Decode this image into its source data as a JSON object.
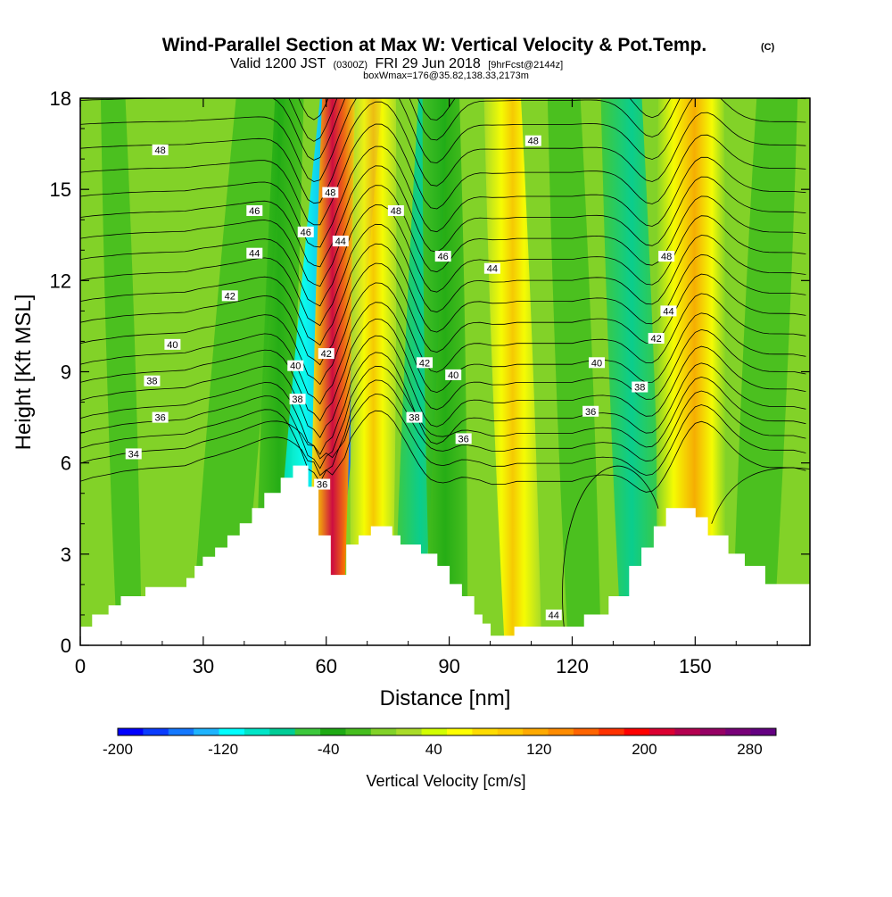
{
  "header": {
    "title": "Wind-Parallel Section at Max W: Vertical Velocity & Pot.Temp.",
    "title_mark": "(C)",
    "valid_prefix": "Valid 1200 JST",
    "valid_zulu": "(0300Z)",
    "valid_date": "FRI 29 Jun 2018",
    "forecast": "[9hrFcst@2144z]",
    "box_info": "boxWmax=176@35.82,138.33,2173m"
  },
  "colorbar": {
    "title": "Vertical Velocity [cm/s]",
    "tick_labels": [
      "-200",
      "-120",
      "-40",
      "40",
      "120",
      "200",
      "280"
    ],
    "colors": [
      "#0000ff",
      "#0a3cff",
      "#1478ff",
      "#1eb4ff",
      "#00ffff",
      "#00e6c8",
      "#00cd96",
      "#3cc83c",
      "#1eaa14",
      "#46be1e",
      "#82d228",
      "#aadc28",
      "#d2ff00",
      "#ffff00",
      "#ffdc00",
      "#ffc800",
      "#ffaa00",
      "#ff8c00",
      "#ff6400",
      "#ff3200",
      "#ff0000",
      "#dc0032",
      "#b40050",
      "#960064",
      "#780078",
      "#640082"
    ]
  },
  "chart_data": {
    "type": "heatmap",
    "title": "Wind-Parallel Section at Max W: Vertical Velocity & Pot.Temp.",
    "xlabel": "Distance [nm]",
    "ylabel": "Height [Kft MSL]",
    "xlim": [
      0,
      178
    ],
    "ylim": [
      0,
      18
    ],
    "x_ticks": [
      0,
      30,
      60,
      90,
      120,
      150
    ],
    "y_ticks": [
      0,
      3,
      6,
      9,
      12,
      15,
      18
    ],
    "shaded_variable": "Vertical Velocity [cm/s]",
    "contour_variable": "Potential temperature",
    "color_range": [
      -200,
      300
    ],
    "color_step": 20,
    "vertical_velocity_bands": [
      {
        "x_bottom": 56,
        "x_top": 64,
        "max_value": 220
      },
      {
        "x_bottom": 54,
        "x_top": 68,
        "min_value": -180
      },
      {
        "x_bottom": 67,
        "x_top": 77,
        "max_value": 110
      },
      {
        "x_bottom": 85,
        "x_top": 85,
        "min_value": -50
      },
      {
        "x_bottom": 103,
        "x_top": 110,
        "max_value": 50
      },
      {
        "x_bottom": 133,
        "x_top": 148,
        "min_value": -60
      },
      {
        "x_bottom": 143,
        "x_top": 157,
        "max_value": 130
      }
    ],
    "terrain": [
      [
        0,
        0.6
      ],
      [
        3,
        1.0
      ],
      [
        7,
        1.3
      ],
      [
        10,
        1.6
      ],
      [
        16,
        1.9
      ],
      [
        26,
        2.2
      ],
      [
        28,
        2.6
      ],
      [
        30,
        2.9
      ],
      [
        33,
        3.2
      ],
      [
        36,
        3.6
      ],
      [
        39,
        4.0
      ],
      [
        42,
        4.5
      ],
      [
        45,
        5.0
      ],
      [
        49,
        5.5
      ],
      [
        52,
        5.9
      ],
      [
        55,
        5.9
      ],
      [
        55.5,
        5.2
      ],
      [
        58,
        5.2
      ],
      [
        58,
        3.6
      ],
      [
        61,
        3.6
      ],
      [
        61,
        2.3
      ],
      [
        65,
        2.3
      ],
      [
        65,
        3.3
      ],
      [
        68,
        3.6
      ],
      [
        71,
        3.9
      ],
      [
        76,
        3.6
      ],
      [
        78,
        3.3
      ],
      [
        83,
        3.0
      ],
      [
        87,
        2.6
      ],
      [
        90,
        2.0
      ],
      [
        93,
        1.6
      ],
      [
        96,
        1.0
      ],
      [
        98,
        0.7
      ],
      [
        100,
        0.3
      ],
      [
        104,
        0.3
      ],
      [
        106,
        0.6
      ],
      [
        120,
        0.6
      ],
      [
        123,
        1.0
      ],
      [
        129,
        1.6
      ],
      [
        134,
        2.6
      ],
      [
        137,
        3.2
      ],
      [
        140,
        3.9
      ],
      [
        143,
        4.5
      ],
      [
        147,
        4.5
      ],
      [
        150,
        4.2
      ],
      [
        153,
        3.6
      ],
      [
        158,
        3.0
      ],
      [
        162,
        2.6
      ],
      [
        167,
        2.0
      ],
      [
        174,
        2.0
      ],
      [
        178,
        1.6
      ]
    ],
    "contour_labels": [
      {
        "text": "48",
        "x": 19.5,
        "y": 16.3
      },
      {
        "text": "46",
        "x": 42.5,
        "y": 14.3
      },
      {
        "text": "44",
        "x": 42.5,
        "y": 12.9
      },
      {
        "text": "42",
        "x": 36.5,
        "y": 11.5
      },
      {
        "text": "40",
        "x": 22.5,
        "y": 9.9
      },
      {
        "text": "38",
        "x": 17.5,
        "y": 8.7
      },
      {
        "text": "36",
        "x": 19.5,
        "y": 7.5
      },
      {
        "text": "34",
        "x": 13.0,
        "y": 6.3
      },
      {
        "text": "46",
        "x": 55.0,
        "y": 13.6
      },
      {
        "text": "48",
        "x": 61.0,
        "y": 14.9
      },
      {
        "text": "44",
        "x": 63.5,
        "y": 13.3
      },
      {
        "text": "42",
        "x": 60.0,
        "y": 9.6
      },
      {
        "text": "40",
        "x": 52.5,
        "y": 9.2
      },
      {
        "text": "38",
        "x": 53.0,
        "y": 8.1
      },
      {
        "text": "36",
        "x": 59.0,
        "y": 5.3
      },
      {
        "text": "48",
        "x": 77.0,
        "y": 14.3
      },
      {
        "text": "46",
        "x": 88.5,
        "y": 12.8
      },
      {
        "text": "44",
        "x": 100.5,
        "y": 12.4
      },
      {
        "text": "42",
        "x": 84.0,
        "y": 9.3
      },
      {
        "text": "40",
        "x": 91.0,
        "y": 8.9
      },
      {
        "text": "38",
        "x": 81.5,
        "y": 7.5
      },
      {
        "text": "36",
        "x": 93.5,
        "y": 6.8
      },
      {
        "text": "48",
        "x": 110.5,
        "y": 16.6
      },
      {
        "text": "40",
        "x": 126.0,
        "y": 9.3
      },
      {
        "text": "38",
        "x": 136.5,
        "y": 8.5
      },
      {
        "text": "36",
        "x": 124.5,
        "y": 7.7
      },
      {
        "text": "44",
        "x": 115.5,
        "y": 1.0
      },
      {
        "text": "48",
        "x": 143.0,
        "y": 12.8
      },
      {
        "text": "44",
        "x": 143.5,
        "y": 11.0
      },
      {
        "text": "42",
        "x": 140.5,
        "y": 10.1
      }
    ]
  }
}
